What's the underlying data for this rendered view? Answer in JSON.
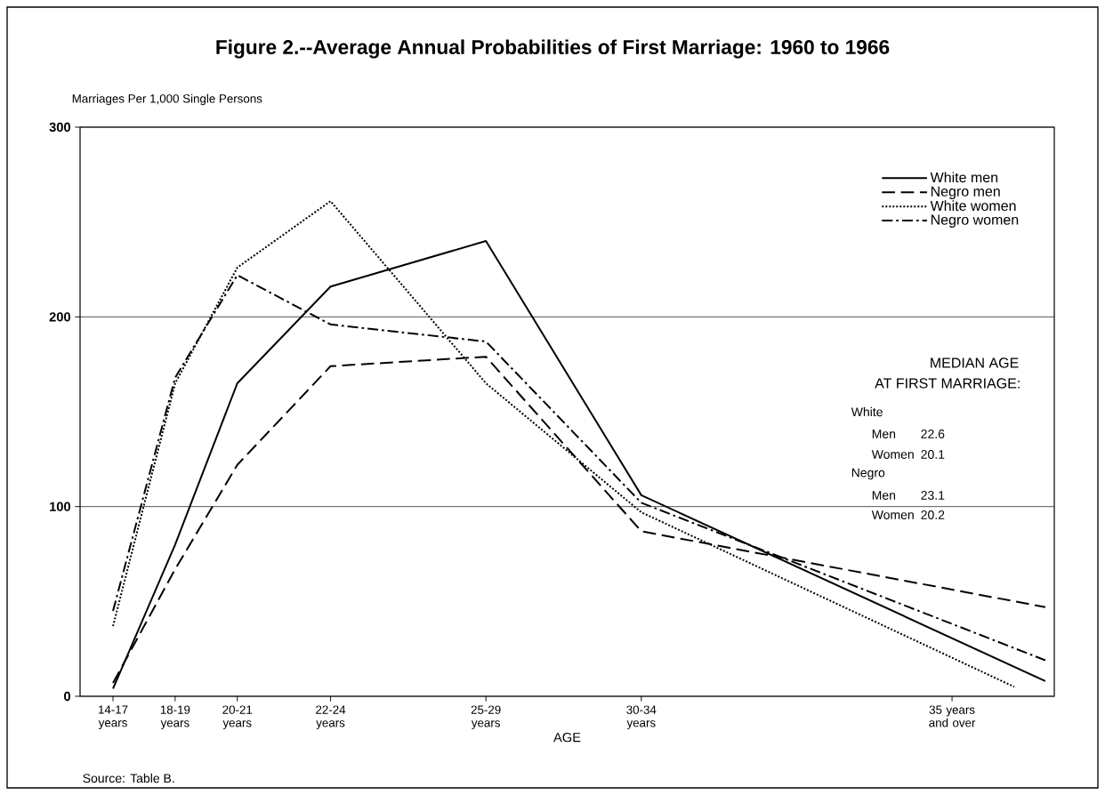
{
  "chart_data": {
    "type": "line",
    "title": "Figure 2.--Average Annual Probabilities of First Marriage:  1960 to 1966",
    "ylabel": "Marriages Per 1,000 Single Persons",
    "xlabel": "AGE",
    "ylim": [
      0,
      300
    ],
    "categories": [
      "14-17 years",
      null,
      "18-19 years",
      null,
      "20-21 years",
      null,
      null,
      "22-24 years",
      null,
      null,
      null,
      null,
      "25-29 years",
      null,
      null,
      null,
      null,
      "30-34 years",
      null,
      null,
      null,
      null,
      null,
      null,
      null,
      null,
      null,
      "35 years and over",
      null,
      null,
      null
    ],
    "yticks": [
      0,
      100,
      200,
      300
    ],
    "grid": "y",
    "legend": "top right",
    "series": [
      {
        "name": "White men",
        "color": "#000000",
        "line_style": "solid",
        "values": [
          4,
          null,
          80,
          null,
          165,
          null,
          null,
          216,
          null,
          null,
          null,
          null,
          240,
          null,
          null,
          null,
          null,
          106,
          null,
          null,
          null,
          null,
          null,
          null,
          null,
          null,
          null,
          null,
          null,
          null,
          8
        ]
      },
      {
        "name": "Negro men",
        "color": "#000000",
        "line_style": "dashed",
        "values": [
          7,
          null,
          67,
          null,
          122,
          null,
          null,
          174,
          null,
          null,
          null,
          null,
          179,
          null,
          null,
          null,
          null,
          87,
          null,
          null,
          null,
          null,
          null,
          null,
          null,
          null,
          null,
          null,
          null,
          null,
          47
        ]
      },
      {
        "name": "White women",
        "color": "#000000",
        "line_style": "dotted",
        "values": [
          37,
          null,
          165,
          null,
          226,
          null,
          null,
          261,
          null,
          null,
          null,
          null,
          165,
          null,
          null,
          null,
          null,
          97,
          null,
          null,
          null,
          null,
          null,
          null,
          null,
          null,
          null,
          null,
          null,
          5,
          null
        ]
      },
      {
        "name": "Negro women",
        "color": "#000000",
        "line_style": "dashdot",
        "values": [
          45,
          null,
          168,
          null,
          222,
          null,
          null,
          196,
          null,
          null,
          null,
          null,
          187,
          null,
          null,
          null,
          null,
          102,
          null,
          null,
          null,
          null,
          null,
          null,
          null,
          null,
          null,
          null,
          null,
          null,
          19
        ]
      }
    ],
    "annotations": [
      "MEDIAN AGE",
      "AT FIRST MARRIAGE:",
      "White",
      "Men",
      "22.6",
      "Women",
      "20.1",
      "Negro",
      "Men",
      "23.1",
      "Women",
      "20.2",
      "Source:  Table B."
    ]
  }
}
